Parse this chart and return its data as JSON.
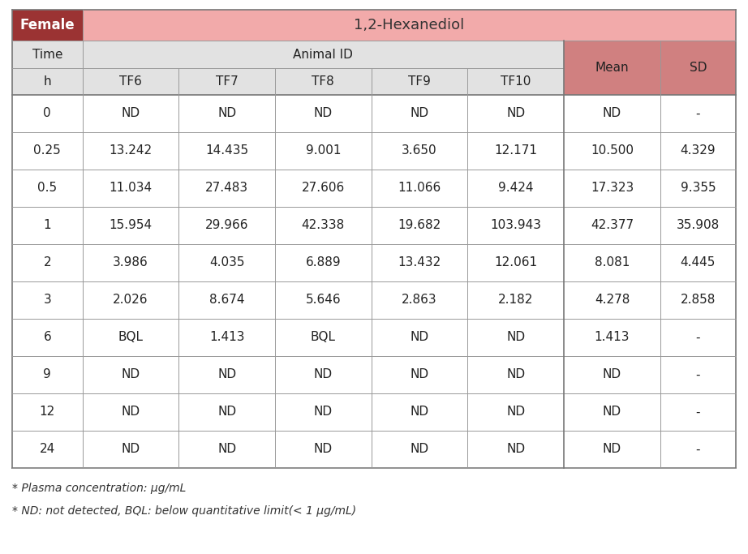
{
  "title_left": "Female",
  "title_right": "1,2-Hexanediol",
  "rows": [
    [
      "0",
      "ND",
      "ND",
      "ND",
      "ND",
      "ND",
      "ND",
      "-"
    ],
    [
      "0.25",
      "13.242",
      "14.435",
      "9.001",
      "3.650",
      "12.171",
      "10.500",
      "4.329"
    ],
    [
      "0.5",
      "11.034",
      "27.483",
      "27.606",
      "11.066",
      "9.424",
      "17.323",
      "9.355"
    ],
    [
      "1",
      "15.954",
      "29.966",
      "42.338",
      "19.682",
      "103.943",
      "42.377",
      "35.908"
    ],
    [
      "2",
      "3.986",
      "4.035",
      "6.889",
      "13.432",
      "12.061",
      "8.081",
      "4.445"
    ],
    [
      "3",
      "2.026",
      "8.674",
      "5.646",
      "2.863",
      "2.182",
      "4.278",
      "2.858"
    ],
    [
      "6",
      "BQL",
      "1.413",
      "BQL",
      "ND",
      "ND",
      "1.413",
      "-"
    ],
    [
      "9",
      "ND",
      "ND",
      "ND",
      "ND",
      "ND",
      "ND",
      "-"
    ],
    [
      "12",
      "ND",
      "ND",
      "ND",
      "ND",
      "ND",
      "ND",
      "-"
    ],
    [
      "24",
      "ND",
      "ND",
      "ND",
      "ND",
      "ND",
      "ND",
      "-"
    ]
  ],
  "footnote1": "* Plasma concentration: μg/mL",
  "footnote2": "* ND: not detected, BQL: below quantitative limit(< 1 μg/mL)",
  "color_header_dark": "#9B3333",
  "color_header_light": "#F2AAAA",
  "color_subheader_bg": "#E2E2E2",
  "color_mean_sd_header": "#D08080",
  "color_white": "#FFFFFF",
  "color_border": "#999999"
}
